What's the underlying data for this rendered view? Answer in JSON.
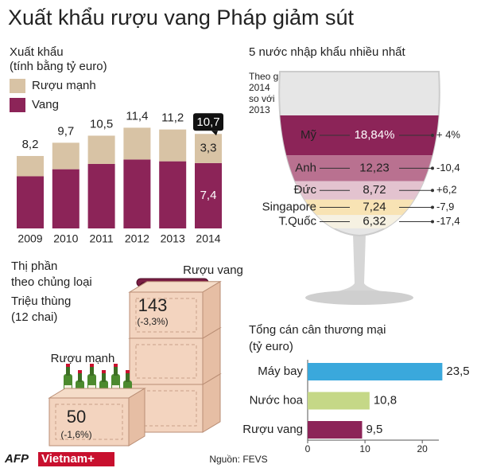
{
  "title": "Xuất khẩu rượu vang Pháp giảm sút",
  "chart_data": [
    {
      "type": "stacked-bar",
      "axis_label_lines": [
        "Xuất khẩu",
        "(tính bằng tỷ euro)"
      ],
      "categories": [
        "2009",
        "2010",
        "2011",
        "2012",
        "2013",
        "2014"
      ],
      "series": [
        {
          "name": "Rượu mạnh",
          "color": "#d8c3a5",
          "values": [
            2.3,
            3.0,
            3.2,
            3.6,
            3.6,
            3.3
          ],
          "value_labels": [
            null,
            null,
            null,
            null,
            null,
            "3,3"
          ]
        },
        {
          "name": "Vang",
          "color": "#8c2458",
          "values": [
            5.9,
            6.7,
            7.3,
            7.8,
            7.6,
            7.4
          ],
          "value_labels": [
            null,
            null,
            null,
            null,
            null,
            "7,4"
          ]
        }
      ],
      "totals": [
        8.2,
        9.7,
        10.5,
        11.4,
        11.2,
        10.7
      ],
      "total_labels": [
        "8,2",
        "9,7",
        "10,5",
        "11,4",
        "11,2",
        "10,7"
      ]
    },
    {
      "type": "glass",
      "title": "5 nước nhập khẩu nhiều nhất",
      "subtitle_lines": [
        "Theo giá trị",
        "2014",
        "so với",
        "2013"
      ],
      "categories": [
        "Mỹ",
        "Anh",
        "Đức",
        "Singapore",
        "T.Quốc"
      ],
      "values": [
        18.84,
        12.23,
        8.72,
        7.24,
        6.32
      ],
      "value_labels": [
        "18,84%",
        "12,23",
        "8,72",
        "7,24",
        "6,32"
      ],
      "colors": [
        "#8c2458",
        "#b97190",
        "#e3c3cf",
        "#f8e3b4",
        "#f6f1e2"
      ],
      "changes": [
        4,
        -10.4,
        6.2,
        -7.9,
        -17.4
      ],
      "change_labels": [
        "+ 4%",
        "-10,4",
        "+6,2",
        "-7,9",
        "-17,4"
      ]
    },
    {
      "type": "crates",
      "title_lines": [
        "Thị  phần",
        "theo chủng loại",
        "Triệu thùng",
        "(12 chai)"
      ],
      "categories": [
        "Rượu vang",
        "Rượu mạnh"
      ],
      "values": [
        143,
        50
      ],
      "changes": [
        -3.3,
        -1.6
      ],
      "change_labels": [
        "(-3,3%)",
        "(-1,6%)"
      ]
    },
    {
      "type": "hbar",
      "title_lines": [
        "Tổng cán cân thương mại",
        "(tỷ euro)"
      ],
      "categories": [
        "Máy bay",
        "Nước hoa",
        "Rượu vang"
      ],
      "values": [
        23.5,
        10.8,
        9.5
      ],
      "value_labels": [
        "23,5",
        "10,8",
        "9,5"
      ],
      "colors": [
        "#3aa8dc",
        "#c5d887",
        "#8c2458"
      ],
      "xlim": [
        0,
        24
      ],
      "xticks": [
        0,
        10,
        20
      ]
    }
  ],
  "source": "Nguồn: FEVS",
  "logo": [
    "AFP",
    "Vietnam+"
  ]
}
